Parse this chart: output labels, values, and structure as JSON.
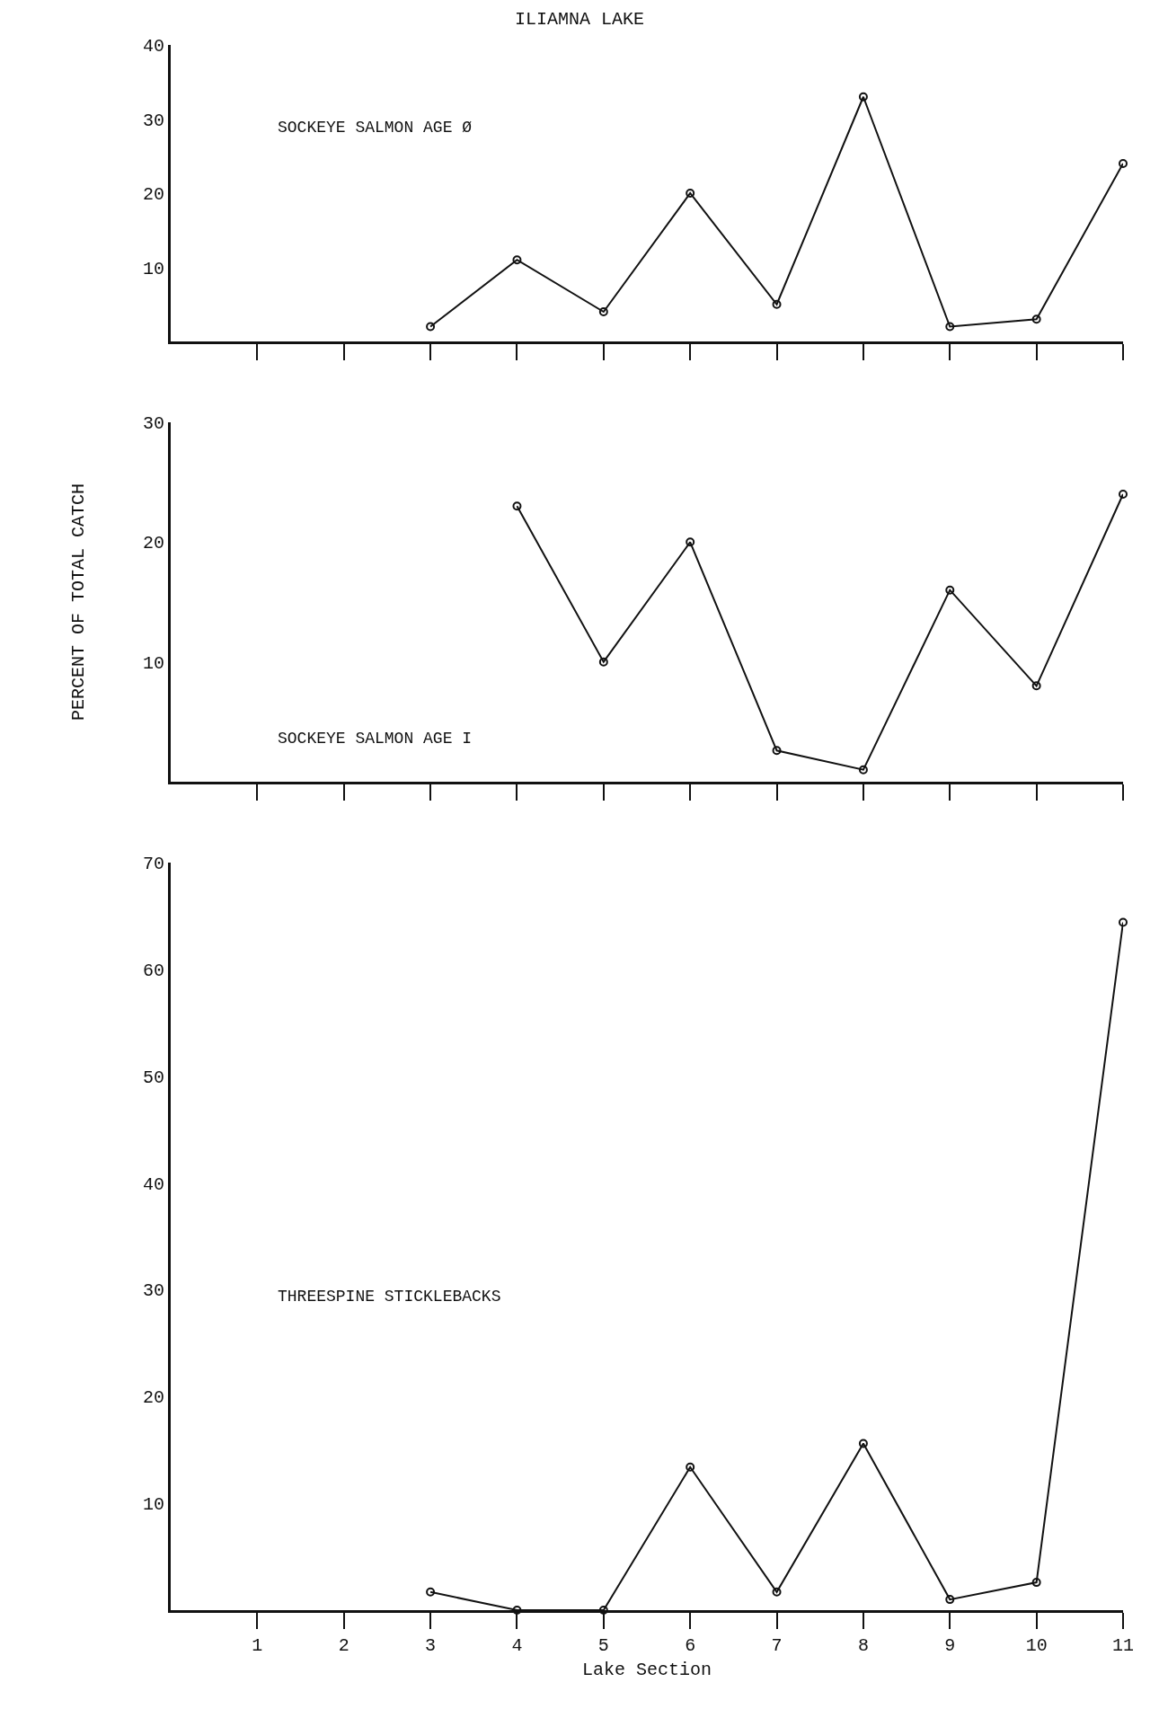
{
  "chart_data": [
    {
      "type": "line",
      "title": "ILIAMNA LAKE",
      "x": [
        3,
        4,
        5,
        6,
        7,
        8,
        9,
        10,
        11
      ],
      "series": [
        {
          "color": "#111111",
          "values": [
            2,
            11,
            4,
            20,
            5,
            33,
            2,
            3,
            24
          ]
        }
      ],
      "xlim": [
        0,
        11
      ],
      "xticks": [
        {
          "value": 1,
          "label": null
        },
        {
          "value": 2,
          "label": null
        },
        {
          "value": 3,
          "label": null
        },
        {
          "value": 4,
          "label": null
        },
        {
          "value": 5,
          "label": null
        },
        {
          "value": 6,
          "label": null
        },
        {
          "value": 7,
          "label": null
        },
        {
          "value": 8,
          "label": null
        },
        {
          "value": 9,
          "label": null
        },
        {
          "value": 10,
          "label": null
        },
        {
          "value": 11,
          "label": null
        }
      ],
      "ylim": [
        0,
        40
      ],
      "yticks": [
        10,
        20,
        30,
        40
      ],
      "tick_labels": "y",
      "grid": false,
      "marker": "circle",
      "line_style": "solid",
      "annotations": [
        "SOCKEYE SALMON AGE Ø"
      ]
    },
    {
      "type": "line",
      "ylabel": "PERCENT OF TOTAL CATCH",
      "x": [
        4,
        5,
        6,
        7,
        8,
        9,
        10,
        11
      ],
      "series": [
        {
          "color": "#111111",
          "values": [
            23,
            10,
            20,
            2.6,
            1,
            16,
            8,
            24
          ]
        }
      ],
      "xlim": [
        0,
        11
      ],
      "xticks": [
        {
          "value": 1,
          "label": null
        },
        {
          "value": 2,
          "label": null
        },
        {
          "value": 3,
          "label": null
        },
        {
          "value": 4,
          "label": null
        },
        {
          "value": 5,
          "label": null
        },
        {
          "value": 6,
          "label": null
        },
        {
          "value": 7,
          "label": null
        },
        {
          "value": 8,
          "label": null
        },
        {
          "value": 9,
          "label": null
        },
        {
          "value": 10,
          "label": null
        },
        {
          "value": 11,
          "label": null
        }
      ],
      "ylim": [
        0,
        30
      ],
      "yticks": [
        10,
        20,
        30
      ],
      "tick_labels": "y",
      "grid": false,
      "marker": "circle",
      "line_style": "solid",
      "annotations": [
        "SOCKEYE SALMON AGE I"
      ]
    },
    {
      "type": "line",
      "xlabel": "Lake Section",
      "x": [
        3,
        4,
        5,
        6,
        7,
        8,
        9,
        10,
        11
      ],
      "series": [
        {
          "color": "#111111",
          "values": [
            1.7,
            0,
            0,
            13.4,
            1.7,
            15.6,
            1,
            2.6,
            64.4
          ]
        }
      ],
      "xlim": [
        0,
        11
      ],
      "xticks": [
        1,
        2,
        3,
        4,
        5,
        6,
        7,
        8,
        9,
        10,
        11
      ],
      "ylim": [
        0,
        70
      ],
      "yticks": [
        10,
        20,
        30,
        40,
        50,
        60,
        70
      ],
      "grid": false,
      "marker": "circle",
      "line_style": "solid",
      "annotations": [
        "THREESPINE STICKLEBACKS"
      ]
    }
  ]
}
